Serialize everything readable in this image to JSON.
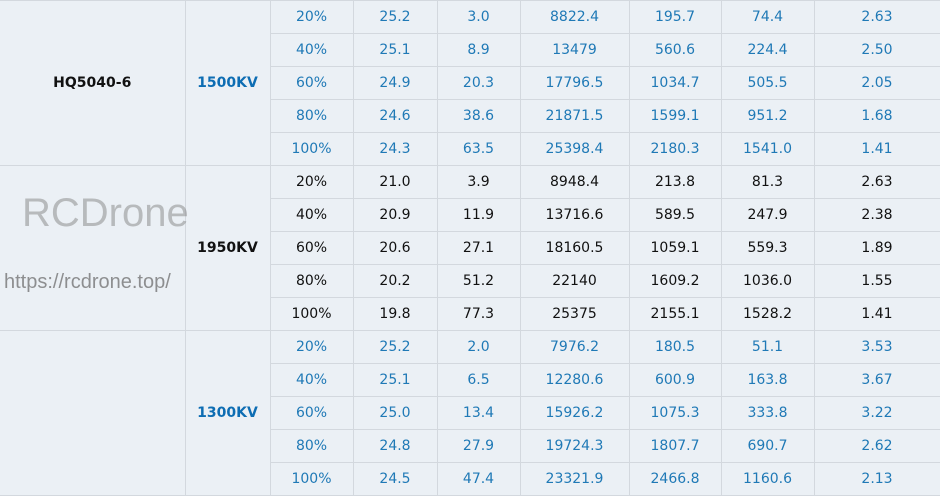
{
  "colors": {
    "blue_text": "#1f79b6",
    "kv_blue": "#0d6db3",
    "black_text": "#111111",
    "background": "#ebf0f5",
    "border": "#d3d8de"
  },
  "groups": [
    {
      "model": "HQ5040-6",
      "kv": "1500KV",
      "color": "blue",
      "rows": [
        [
          "20%",
          "25.2",
          "3.0",
          "8822.4",
          "195.7",
          "74.4",
          "2.63"
        ],
        [
          "40%",
          "25.1",
          "8.9",
          "13479",
          "560.6",
          "224.4",
          "2.50"
        ],
        [
          "60%",
          "24.9",
          "20.3",
          "17796.5",
          "1034.7",
          "505.5",
          "2.05"
        ],
        [
          "80%",
          "24.6",
          "38.6",
          "21871.5",
          "1599.1",
          "951.2",
          "1.68"
        ],
        [
          "100%",
          "24.3",
          "63.5",
          "25398.4",
          "2180.3",
          "1541.0",
          "1.41"
        ]
      ]
    },
    {
      "model": "",
      "kv": "1950KV",
      "color": "black",
      "rows": [
        [
          "20%",
          "21.0",
          "3.9",
          "8948.4",
          "213.8",
          "81.3",
          "2.63"
        ],
        [
          "40%",
          "20.9",
          "11.9",
          "13716.6",
          "589.5",
          "247.9",
          "2.38"
        ],
        [
          "60%",
          "20.6",
          "27.1",
          "18160.5",
          "1059.1",
          "559.3",
          "1.89"
        ],
        [
          "80%",
          "20.2",
          "51.2",
          "22140",
          "1609.2",
          "1036.0",
          "1.55"
        ],
        [
          "100%",
          "19.8",
          "77.3",
          "25375",
          "2155.1",
          "1528.2",
          "1.41"
        ]
      ]
    },
    {
      "model": "",
      "kv": "1300KV",
      "color": "blue",
      "rows": [
        [
          "20%",
          "25.2",
          "2.0",
          "7976.2",
          "180.5",
          "51.1",
          "3.53"
        ],
        [
          "40%",
          "25.1",
          "6.5",
          "12280.6",
          "600.9",
          "163.8",
          "3.67"
        ],
        [
          "60%",
          "25.0",
          "13.4",
          "15926.2",
          "1075.3",
          "333.8",
          "3.22"
        ],
        [
          "80%",
          "24.8",
          "27.9",
          "19724.3",
          "1807.7",
          "690.7",
          "2.62"
        ],
        [
          "100%",
          "24.5",
          "47.4",
          "23321.9",
          "2466.8",
          "1160.6",
          "2.13"
        ]
      ]
    }
  ],
  "watermark": {
    "brand": "RCDrone",
    "url": "https://rcdrone.top/"
  }
}
